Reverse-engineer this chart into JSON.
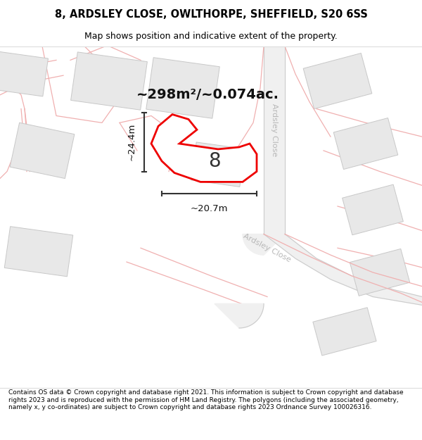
{
  "title_line1": "8, ARDSLEY CLOSE, OWLTHORPE, SHEFFIELD, S20 6SS",
  "title_line2": "Map shows position and indicative extent of the property.",
  "footer_text": "Contains OS data © Crown copyright and database right 2021. This information is subject to Crown copyright and database rights 2023 and is reproduced with the permission of HM Land Registry. The polygons (including the associated geometry, namely x, y co-ordinates) are subject to Crown copyright and database rights 2023 Ordnance Survey 100026316.",
  "area_label": "~298m²/~0.074ac.",
  "width_label": "~20.7m",
  "height_label": "~24.4m",
  "plot_number": "8",
  "road_label_diag": "Ardsley Close",
  "road_label_vert": "Ardsley Close",
  "map_bg": "#ffffff",
  "building_fill": "#e8e8e8",
  "building_edge": "#c8c8c8",
  "road_pink": "#f0b0b0",
  "road_fill": "#f0f0f0",
  "property_color": "#ee0000",
  "property_fill": "#ffffff",
  "annotation_color": "#333333",
  "road_text_color": "#c0c0c0",
  "title_fontsize": 10.5,
  "subtitle_fontsize": 9,
  "footer_fontsize": 6.5
}
